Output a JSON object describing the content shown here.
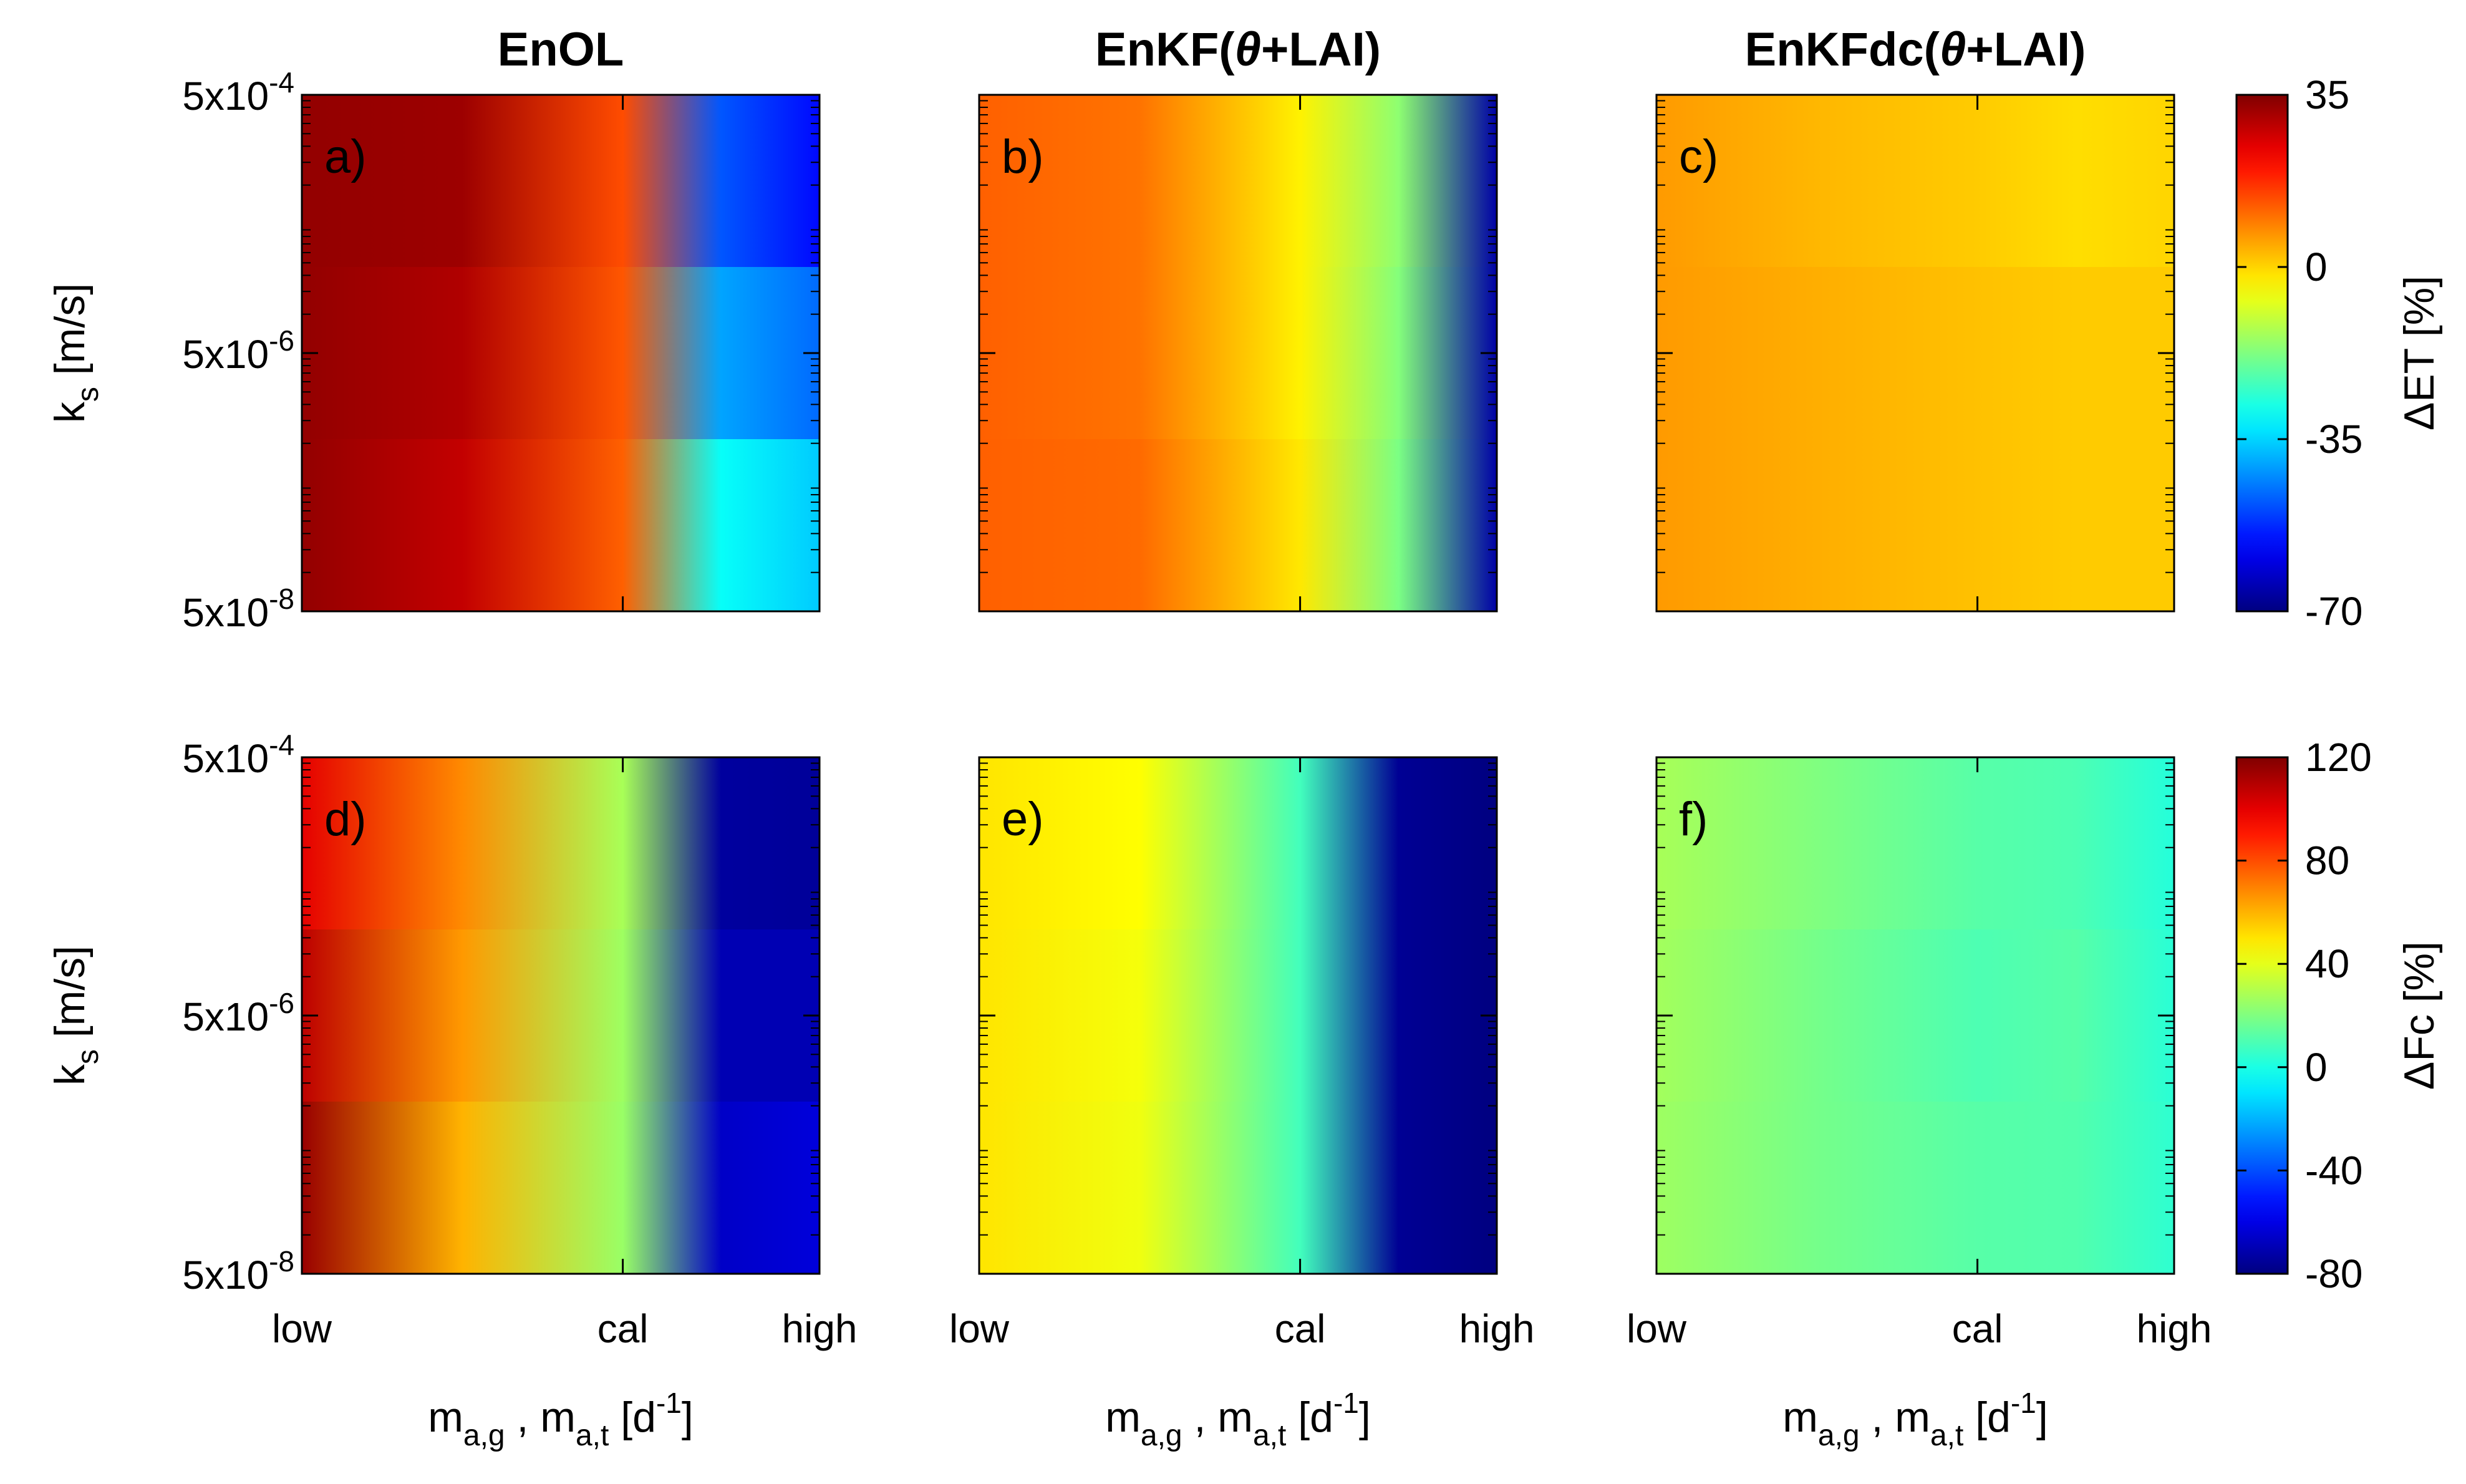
{
  "chart_data": {
    "type": "heatmap",
    "column_titles": [
      {
        "prefix": "EnOL",
        "theta": "",
        "suffix": ""
      },
      {
        "prefix": "EnKF(",
        "theta": "θ",
        "suffix": "+LAI)"
      },
      {
        "prefix": "EnKFdc(",
        "theta": "θ",
        "suffix": "+LAI)"
      }
    ],
    "x_axis": {
      "ticks": [
        "low",
        "cal",
        "high"
      ],
      "label_base": "m",
      "label_sub1": "a,g",
      "label_sep": " , m",
      "label_sub2": "a,t",
      "label_unit_open": " [d",
      "label_unit_exp": "-1",
      "label_unit_close": "]"
    },
    "y_axis": {
      "ticks": [
        {
          "base": "5x10",
          "exp": "-4"
        },
        {
          "base": "5x10",
          "exp": "-6"
        },
        {
          "base": "5x10",
          "exp": "-8"
        }
      ],
      "label_base": "k",
      "label_sub": "s",
      "label_unit": " [m/s]",
      "range": [
        5e-08,
        0.0005
      ],
      "scale": "log"
    },
    "rows": [
      {
        "variable": "ΔET [%]",
        "colorbar_label": "ΔET [%]",
        "colorbar_ticks": [
          "35",
          "0",
          "-35",
          "-70"
        ],
        "clim": [
          -70,
          35
        ],
        "panels": [
          {
            "label": "a)",
            "x_positions": [
              0,
              0.31,
              0.62,
              0.81,
              1.0
            ],
            "values": [
              [
                33,
                32,
                14,
                -48,
                -56
              ],
              [
                33,
                30,
                13,
                -40,
                -46
              ],
              [
                33,
                28,
                12,
                -30,
                -36
              ]
            ]
          },
          {
            "label": "b)",
            "x_positions": [
              0,
              0.31,
              0.62,
              0.81,
              1.0
            ],
            "values": [
              [
                12,
                10,
                -3,
                -16,
                -66
              ],
              [
                12,
                10,
                -3,
                -17,
                -66
              ],
              [
                12,
                11,
                -2,
                -18,
                -66
              ]
            ]
          },
          {
            "label": "c)",
            "x_positions": [
              0,
              0.31,
              0.62,
              0.81,
              1.0
            ],
            "values": [
              [
                6,
                3,
                1,
                -1,
                0
              ],
              [
                6,
                4,
                2,
                1,
                1
              ],
              [
                6,
                4,
                2,
                1,
                1
              ]
            ]
          }
        ]
      },
      {
        "variable": "ΔFc [%]",
        "colorbar_label": "ΔFc [%]",
        "colorbar_ticks": [
          "120",
          "80",
          "40",
          "0",
          "-40",
          "-80"
        ],
        "clim": [
          -80,
          120
        ],
        "panels": [
          {
            "label": "d)",
            "x_positions": [
              0,
              0.31,
              0.62,
              0.81,
              1.0
            ],
            "values": [
              [
                100,
                68,
                28,
                -74,
                -75
              ],
              [
                108,
                65,
                26,
                -70,
                -70
              ],
              [
                115,
                60,
                25,
                -66,
                -62
              ]
            ]
          },
          {
            "label": "e)",
            "x_positions": [
              0,
              0.31,
              0.62,
              0.81,
              1.0
            ],
            "values": [
              [
                50,
                45,
                8,
                -76,
                -80
              ],
              [
                50,
                43,
                8,
                -76,
                -80
              ],
              [
                50,
                42,
                8,
                -76,
                -80
              ]
            ]
          },
          {
            "label": "f)",
            "x_positions": [
              0,
              0.31,
              0.62,
              0.81,
              1.0
            ],
            "values": [
              [
                28,
                20,
                12,
                10,
                2
              ],
              [
                27,
                18,
                10,
                12,
                3
              ],
              [
                26,
                18,
                12,
                11,
                4
              ]
            ]
          }
        ]
      }
    ],
    "colormap": "jet"
  }
}
